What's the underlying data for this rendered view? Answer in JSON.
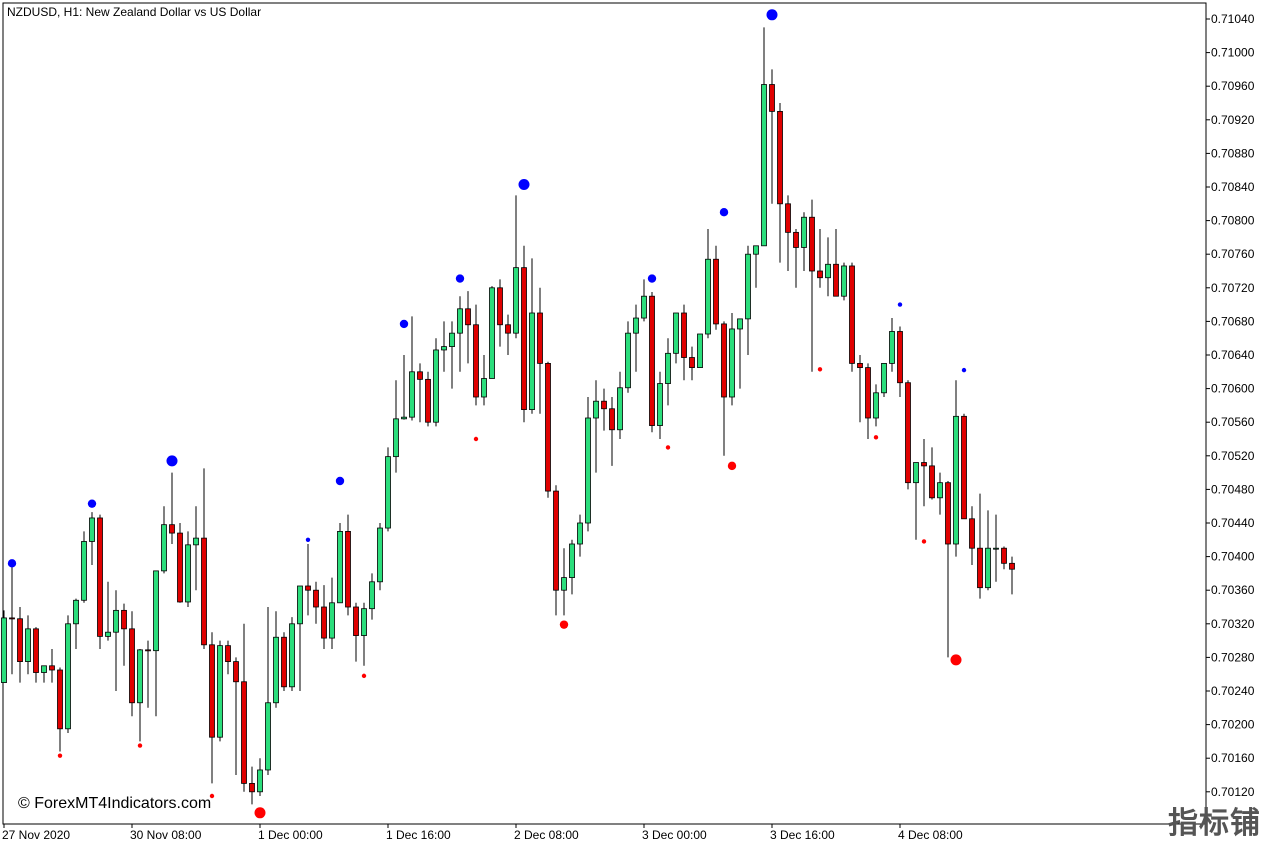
{
  "chart_title": "NZDUSD, H1:  New Zealand Dollar vs US Dollar",
  "watermark": "© ForexMT4Indicators.com",
  "corner_logo": "指标铺",
  "colors": {
    "bull": "#2bde7c",
    "bear": "#e00000",
    "outline": "#000000",
    "swing_high": "#0000ff",
    "swing_low": "#ff0000",
    "axis": "#000000",
    "background": "#ffffff"
  },
  "chart_data": {
    "type": "candlestick",
    "symbol": "NZDUSD",
    "timeframe": "H1",
    "ylim": [
      0.7008,
      0.7106
    ],
    "y_ticks": [
      "0.71040",
      "0.71000",
      "0.70960",
      "0.70920",
      "0.70880",
      "0.70840",
      "0.70800",
      "0.70760",
      "0.70720",
      "0.70680",
      "0.70640",
      "0.70600",
      "0.70560",
      "0.70520",
      "0.70480",
      "0.70440",
      "0.70400",
      "0.70360",
      "0.70320",
      "0.70280",
      "0.70240",
      "0.70200",
      "0.70160",
      "0.70120"
    ],
    "x_labels": [
      {
        "index": 0,
        "text": "27 Nov 2020"
      },
      {
        "index": 16,
        "text": "30 Nov 08:00"
      },
      {
        "index": 32,
        "text": "1 Dec 00:00"
      },
      {
        "index": 48,
        "text": "1 Dec 16:00"
      },
      {
        "index": 64,
        "text": "2 Dec 08:00"
      },
      {
        "index": 80,
        "text": "3 Dec 00:00"
      },
      {
        "index": 96,
        "text": "3 Dec 16:00"
      },
      {
        "index": 112,
        "text": "4 Dec 08:00"
      }
    ],
    "candles": [
      {
        "o": 0.7025,
        "h": 0.70336,
        "l": 0.7025,
        "c": 0.70327
      },
      {
        "o": 0.70327,
        "h": 0.7039,
        "l": 0.7026,
        "c": 0.70326
      },
      {
        "o": 0.70326,
        "h": 0.7034,
        "l": 0.7025,
        "c": 0.70275
      },
      {
        "o": 0.70275,
        "h": 0.7033,
        "l": 0.7026,
        "c": 0.70314
      },
      {
        "o": 0.70314,
        "h": 0.70316,
        "l": 0.7025,
        "c": 0.70262
      },
      {
        "o": 0.70262,
        "h": 0.7027,
        "l": 0.7025,
        "c": 0.7027
      },
      {
        "o": 0.7027,
        "h": 0.7029,
        "l": 0.7025,
        "c": 0.70265
      },
      {
        "o": 0.70265,
        "h": 0.70268,
        "l": 0.70168,
        "c": 0.70195
      },
      {
        "o": 0.70195,
        "h": 0.7033,
        "l": 0.7019,
        "c": 0.7032
      },
      {
        "o": 0.7032,
        "h": 0.7035,
        "l": 0.7029,
        "c": 0.70348
      },
      {
        "o": 0.70348,
        "h": 0.7043,
        "l": 0.70345,
        "c": 0.70418
      },
      {
        "o": 0.70418,
        "h": 0.70453,
        "l": 0.7039,
        "c": 0.70446
      },
      {
        "o": 0.70446,
        "h": 0.7045,
        "l": 0.7029,
        "c": 0.70305
      },
      {
        "o": 0.70305,
        "h": 0.7037,
        "l": 0.703,
        "c": 0.7031
      },
      {
        "o": 0.7031,
        "h": 0.7036,
        "l": 0.7024,
        "c": 0.70336
      },
      {
        "o": 0.70336,
        "h": 0.70344,
        "l": 0.7027,
        "c": 0.70314
      },
      {
        "o": 0.70314,
        "h": 0.70335,
        "l": 0.7021,
        "c": 0.70226
      },
      {
        "o": 0.70226,
        "h": 0.7029,
        "l": 0.7018,
        "c": 0.70289
      },
      {
        "o": 0.70289,
        "h": 0.703,
        "l": 0.7022,
        "c": 0.70288
      },
      {
        "o": 0.70288,
        "h": 0.7038,
        "l": 0.7021,
        "c": 0.70383
      },
      {
        "o": 0.70383,
        "h": 0.7046,
        "l": 0.7038,
        "c": 0.70438
      },
      {
        "o": 0.70438,
        "h": 0.705,
        "l": 0.70415,
        "c": 0.70428
      },
      {
        "o": 0.70428,
        "h": 0.7044,
        "l": 0.70345,
        "c": 0.70346
      },
      {
        "o": 0.70346,
        "h": 0.7043,
        "l": 0.7034,
        "c": 0.70414
      },
      {
        "o": 0.70414,
        "h": 0.7046,
        "l": 0.7036,
        "c": 0.70422
      },
      {
        "o": 0.70422,
        "h": 0.70505,
        "l": 0.7029,
        "c": 0.70295
      },
      {
        "o": 0.70295,
        "h": 0.7031,
        "l": 0.7013,
        "c": 0.70185
      },
      {
        "o": 0.70185,
        "h": 0.703,
        "l": 0.7018,
        "c": 0.70294
      },
      {
        "o": 0.70294,
        "h": 0.703,
        "l": 0.7026,
        "c": 0.70275
      },
      {
        "o": 0.70275,
        "h": 0.7028,
        "l": 0.7014,
        "c": 0.70251
      },
      {
        "o": 0.70251,
        "h": 0.7032,
        "l": 0.7012,
        "c": 0.7013
      },
      {
        "o": 0.7013,
        "h": 0.7015,
        "l": 0.70105,
        "c": 0.7012
      },
      {
        "o": 0.7012,
        "h": 0.7016,
        "l": 0.70115,
        "c": 0.70146
      },
      {
        "o": 0.70146,
        "h": 0.7034,
        "l": 0.7014,
        "c": 0.70226
      },
      {
        "o": 0.70226,
        "h": 0.70335,
        "l": 0.7022,
        "c": 0.70304
      },
      {
        "o": 0.70304,
        "h": 0.7031,
        "l": 0.7024,
        "c": 0.70245
      },
      {
        "o": 0.70245,
        "h": 0.70328,
        "l": 0.7024,
        "c": 0.7032
      },
      {
        "o": 0.7032,
        "h": 0.7036,
        "l": 0.7024,
        "c": 0.70365
      },
      {
        "o": 0.70365,
        "h": 0.70415,
        "l": 0.7033,
        "c": 0.7036
      },
      {
        "o": 0.7036,
        "h": 0.7037,
        "l": 0.7032,
        "c": 0.7034
      },
      {
        "o": 0.7034,
        "h": 0.70366,
        "l": 0.7029,
        "c": 0.70303
      },
      {
        "o": 0.70303,
        "h": 0.70375,
        "l": 0.7029,
        "c": 0.70345
      },
      {
        "o": 0.70345,
        "h": 0.7044,
        "l": 0.70345,
        "c": 0.7043
      },
      {
        "o": 0.7043,
        "h": 0.7045,
        "l": 0.7033,
        "c": 0.7034
      },
      {
        "o": 0.7034,
        "h": 0.70345,
        "l": 0.70275,
        "c": 0.70306
      },
      {
        "o": 0.70306,
        "h": 0.70345,
        "l": 0.7027,
        "c": 0.70338
      },
      {
        "o": 0.70338,
        "h": 0.7038,
        "l": 0.70325,
        "c": 0.7037
      },
      {
        "o": 0.7037,
        "h": 0.7044,
        "l": 0.7036,
        "c": 0.70434
      },
      {
        "o": 0.70434,
        "h": 0.7053,
        "l": 0.7043,
        "c": 0.70519
      },
      {
        "o": 0.70519,
        "h": 0.7061,
        "l": 0.705,
        "c": 0.70564
      },
      {
        "o": 0.70564,
        "h": 0.7064,
        "l": 0.70563,
        "c": 0.70566
      },
      {
        "o": 0.70566,
        "h": 0.70686,
        "l": 0.70562,
        "c": 0.7062
      },
      {
        "o": 0.7062,
        "h": 0.7063,
        "l": 0.7056,
        "c": 0.70611
      },
      {
        "o": 0.70611,
        "h": 0.7062,
        "l": 0.70555,
        "c": 0.7056
      },
      {
        "o": 0.7056,
        "h": 0.7066,
        "l": 0.70555,
        "c": 0.70646
      },
      {
        "o": 0.70646,
        "h": 0.7068,
        "l": 0.7062,
        "c": 0.7065
      },
      {
        "o": 0.7065,
        "h": 0.7068,
        "l": 0.706,
        "c": 0.70666
      },
      {
        "o": 0.70666,
        "h": 0.7071,
        "l": 0.7062,
        "c": 0.70695
      },
      {
        "o": 0.70695,
        "h": 0.70716,
        "l": 0.7063,
        "c": 0.70676
      },
      {
        "o": 0.70676,
        "h": 0.707,
        "l": 0.7058,
        "c": 0.7059
      },
      {
        "o": 0.7059,
        "h": 0.7064,
        "l": 0.7058,
        "c": 0.70612
      },
      {
        "o": 0.70612,
        "h": 0.70722,
        "l": 0.70612,
        "c": 0.7072
      },
      {
        "o": 0.7072,
        "h": 0.7073,
        "l": 0.7065,
        "c": 0.70676
      },
      {
        "o": 0.70676,
        "h": 0.70688,
        "l": 0.7064,
        "c": 0.70666
      },
      {
        "o": 0.70666,
        "h": 0.7083,
        "l": 0.7066,
        "c": 0.70744
      },
      {
        "o": 0.70744,
        "h": 0.7077,
        "l": 0.7056,
        "c": 0.70575
      },
      {
        "o": 0.70575,
        "h": 0.70755,
        "l": 0.7057,
        "c": 0.7069
      },
      {
        "o": 0.7069,
        "h": 0.7072,
        "l": 0.7057,
        "c": 0.7063
      },
      {
        "o": 0.7063,
        "h": 0.70632,
        "l": 0.7047,
        "c": 0.70478
      },
      {
        "o": 0.70478,
        "h": 0.70485,
        "l": 0.7033,
        "c": 0.7036
      },
      {
        "o": 0.7036,
        "h": 0.7041,
        "l": 0.7033,
        "c": 0.70375
      },
      {
        "o": 0.70375,
        "h": 0.7042,
        "l": 0.70355,
        "c": 0.70415
      },
      {
        "o": 0.70415,
        "h": 0.7045,
        "l": 0.704,
        "c": 0.7044
      },
      {
        "o": 0.7044,
        "h": 0.7059,
        "l": 0.7043,
        "c": 0.70565
      },
      {
        "o": 0.70565,
        "h": 0.7061,
        "l": 0.705,
        "c": 0.70585
      },
      {
        "o": 0.70585,
        "h": 0.706,
        "l": 0.7055,
        "c": 0.70576
      },
      {
        "o": 0.70576,
        "h": 0.7059,
        "l": 0.70508,
        "c": 0.70551
      },
      {
        "o": 0.70551,
        "h": 0.7062,
        "l": 0.7054,
        "c": 0.70601
      },
      {
        "o": 0.70601,
        "h": 0.7068,
        "l": 0.70595,
        "c": 0.70666
      },
      {
        "o": 0.70666,
        "h": 0.707,
        "l": 0.7062,
        "c": 0.70684
      },
      {
        "o": 0.70684,
        "h": 0.7073,
        "l": 0.7068,
        "c": 0.7071
      },
      {
        "o": 0.7071,
        "h": 0.70715,
        "l": 0.70548,
        "c": 0.70556
      },
      {
        "o": 0.70556,
        "h": 0.7062,
        "l": 0.7054,
        "c": 0.70606
      },
      {
        "o": 0.70606,
        "h": 0.7066,
        "l": 0.7058,
        "c": 0.70642
      },
      {
        "o": 0.70642,
        "h": 0.7069,
        "l": 0.7063,
        "c": 0.7069
      },
      {
        "o": 0.7069,
        "h": 0.707,
        "l": 0.7061,
        "c": 0.70637
      },
      {
        "o": 0.70637,
        "h": 0.7065,
        "l": 0.7061,
        "c": 0.70625
      },
      {
        "o": 0.70625,
        "h": 0.70665,
        "l": 0.70625,
        "c": 0.70665
      },
      {
        "o": 0.70665,
        "h": 0.7079,
        "l": 0.7066,
        "c": 0.70754
      },
      {
        "o": 0.70754,
        "h": 0.7077,
        "l": 0.7067,
        "c": 0.70677
      },
      {
        "o": 0.70677,
        "h": 0.7068,
        "l": 0.7052,
        "c": 0.7059
      },
      {
        "o": 0.7059,
        "h": 0.7069,
        "l": 0.7058,
        "c": 0.70671
      },
      {
        "o": 0.70671,
        "h": 0.7068,
        "l": 0.706,
        "c": 0.70683
      },
      {
        "o": 0.70683,
        "h": 0.7077,
        "l": 0.7064,
        "c": 0.7076
      },
      {
        "o": 0.7076,
        "h": 0.7077,
        "l": 0.7072,
        "c": 0.7077
      },
      {
        "o": 0.7077,
        "h": 0.7103,
        "l": 0.7077,
        "c": 0.70962
      },
      {
        "o": 0.70962,
        "h": 0.7098,
        "l": 0.7082,
        "c": 0.7093
      },
      {
        "o": 0.7093,
        "h": 0.7094,
        "l": 0.7075,
        "c": 0.7082
      },
      {
        "o": 0.7082,
        "h": 0.7083,
        "l": 0.7074,
        "c": 0.70786
      },
      {
        "o": 0.70786,
        "h": 0.7079,
        "l": 0.7072,
        "c": 0.70768
      },
      {
        "o": 0.70768,
        "h": 0.7081,
        "l": 0.7074,
        "c": 0.70804
      },
      {
        "o": 0.70804,
        "h": 0.70825,
        "l": 0.7062,
        "c": 0.7074
      },
      {
        "o": 0.7074,
        "h": 0.7079,
        "l": 0.7072,
        "c": 0.70732
      },
      {
        "o": 0.70732,
        "h": 0.7078,
        "l": 0.7071,
        "c": 0.70748
      },
      {
        "o": 0.70748,
        "h": 0.7079,
        "l": 0.7071,
        "c": 0.7071
      },
      {
        "o": 0.7071,
        "h": 0.7075,
        "l": 0.70705,
        "c": 0.70746
      },
      {
        "o": 0.70746,
        "h": 0.7075,
        "l": 0.7062,
        "c": 0.7063
      },
      {
        "o": 0.7063,
        "h": 0.7064,
        "l": 0.7056,
        "c": 0.70625
      },
      {
        "o": 0.70625,
        "h": 0.7063,
        "l": 0.7054,
        "c": 0.70565
      },
      {
        "o": 0.70565,
        "h": 0.70605,
        "l": 0.70555,
        "c": 0.70595
      },
      {
        "o": 0.70595,
        "h": 0.7063,
        "l": 0.7059,
        "c": 0.7063
      },
      {
        "o": 0.7063,
        "h": 0.70684,
        "l": 0.7062,
        "c": 0.70668
      },
      {
        "o": 0.70668,
        "h": 0.70674,
        "l": 0.7059,
        "c": 0.70607
      },
      {
        "o": 0.70607,
        "h": 0.7061,
        "l": 0.7048,
        "c": 0.70488
      },
      {
        "o": 0.70488,
        "h": 0.70505,
        "l": 0.7042,
        "c": 0.70512
      },
      {
        "o": 0.70512,
        "h": 0.7054,
        "l": 0.7046,
        "c": 0.70508
      },
      {
        "o": 0.70508,
        "h": 0.7053,
        "l": 0.70468,
        "c": 0.7047
      },
      {
        "o": 0.7047,
        "h": 0.705,
        "l": 0.7045,
        "c": 0.70488
      },
      {
        "o": 0.70488,
        "h": 0.7049,
        "l": 0.7028,
        "c": 0.70415
      },
      {
        "o": 0.70415,
        "h": 0.7061,
        "l": 0.704,
        "c": 0.70567
      },
      {
        "o": 0.70567,
        "h": 0.7057,
        "l": 0.7045,
        "c": 0.70445
      },
      {
        "o": 0.70445,
        "h": 0.7046,
        "l": 0.7039,
        "c": 0.7041
      },
      {
        "o": 0.7041,
        "h": 0.70475,
        "l": 0.7035,
        "c": 0.70363
      },
      {
        "o": 0.70363,
        "h": 0.70455,
        "l": 0.7036,
        "c": 0.7041
      },
      {
        "o": 0.7041,
        "h": 0.7045,
        "l": 0.7037,
        "c": 0.7041
      },
      {
        "o": 0.7041,
        "h": 0.70412,
        "l": 0.70385,
        "c": 0.70392
      },
      {
        "o": 0.70392,
        "h": 0.704,
        "l": 0.70355,
        "c": 0.70385
      }
    ],
    "swing_markers": [
      {
        "index": 1,
        "type": "high",
        "price": 0.70392,
        "size": "medium"
      },
      {
        "index": 11,
        "type": "high",
        "price": 0.70463,
        "size": "medium"
      },
      {
        "index": 21,
        "type": "high",
        "price": 0.70514,
        "size": "large"
      },
      {
        "index": 38,
        "type": "high",
        "price": 0.7042,
        "size": "small"
      },
      {
        "index": 42,
        "type": "high",
        "price": 0.7049,
        "size": "medium"
      },
      {
        "index": 50,
        "type": "high",
        "price": 0.70677,
        "size": "medium"
      },
      {
        "index": 57,
        "type": "high",
        "price": 0.70731,
        "size": "medium"
      },
      {
        "index": 65,
        "type": "high",
        "price": 0.70843,
        "size": "large"
      },
      {
        "index": 81,
        "type": "high",
        "price": 0.70731,
        "size": "medium"
      },
      {
        "index": 90,
        "type": "high",
        "price": 0.7081,
        "size": "medium"
      },
      {
        "index": 96,
        "type": "high",
        "price": 0.71045,
        "size": "large"
      },
      {
        "index": 112,
        "type": "high",
        "price": 0.707,
        "size": "small"
      },
      {
        "index": 120,
        "type": "high",
        "price": 0.70622,
        "size": "small"
      },
      {
        "index": 7,
        "type": "low",
        "price": 0.70163,
        "size": "small"
      },
      {
        "index": 17,
        "type": "low",
        "price": 0.70175,
        "size": "small"
      },
      {
        "index": 26,
        "type": "low",
        "price": 0.70115,
        "size": "small"
      },
      {
        "index": 32,
        "type": "low",
        "price": 0.70095,
        "size": "large"
      },
      {
        "index": 45,
        "type": "low",
        "price": 0.70258,
        "size": "small"
      },
      {
        "index": 59,
        "type": "low",
        "price": 0.7054,
        "size": "small"
      },
      {
        "index": 70,
        "type": "low",
        "price": 0.70319,
        "size": "medium"
      },
      {
        "index": 83,
        "type": "low",
        "price": 0.7053,
        "size": "small"
      },
      {
        "index": 91,
        "type": "low",
        "price": 0.70508,
        "size": "medium"
      },
      {
        "index": 102,
        "type": "low",
        "price": 0.70623,
        "size": "small"
      },
      {
        "index": 109,
        "type": "low",
        "price": 0.70542,
        "size": "small"
      },
      {
        "index": 115,
        "type": "low",
        "price": 0.70418,
        "size": "small"
      },
      {
        "index": 119,
        "type": "low",
        "price": 0.70277,
        "size": "large"
      }
    ]
  }
}
